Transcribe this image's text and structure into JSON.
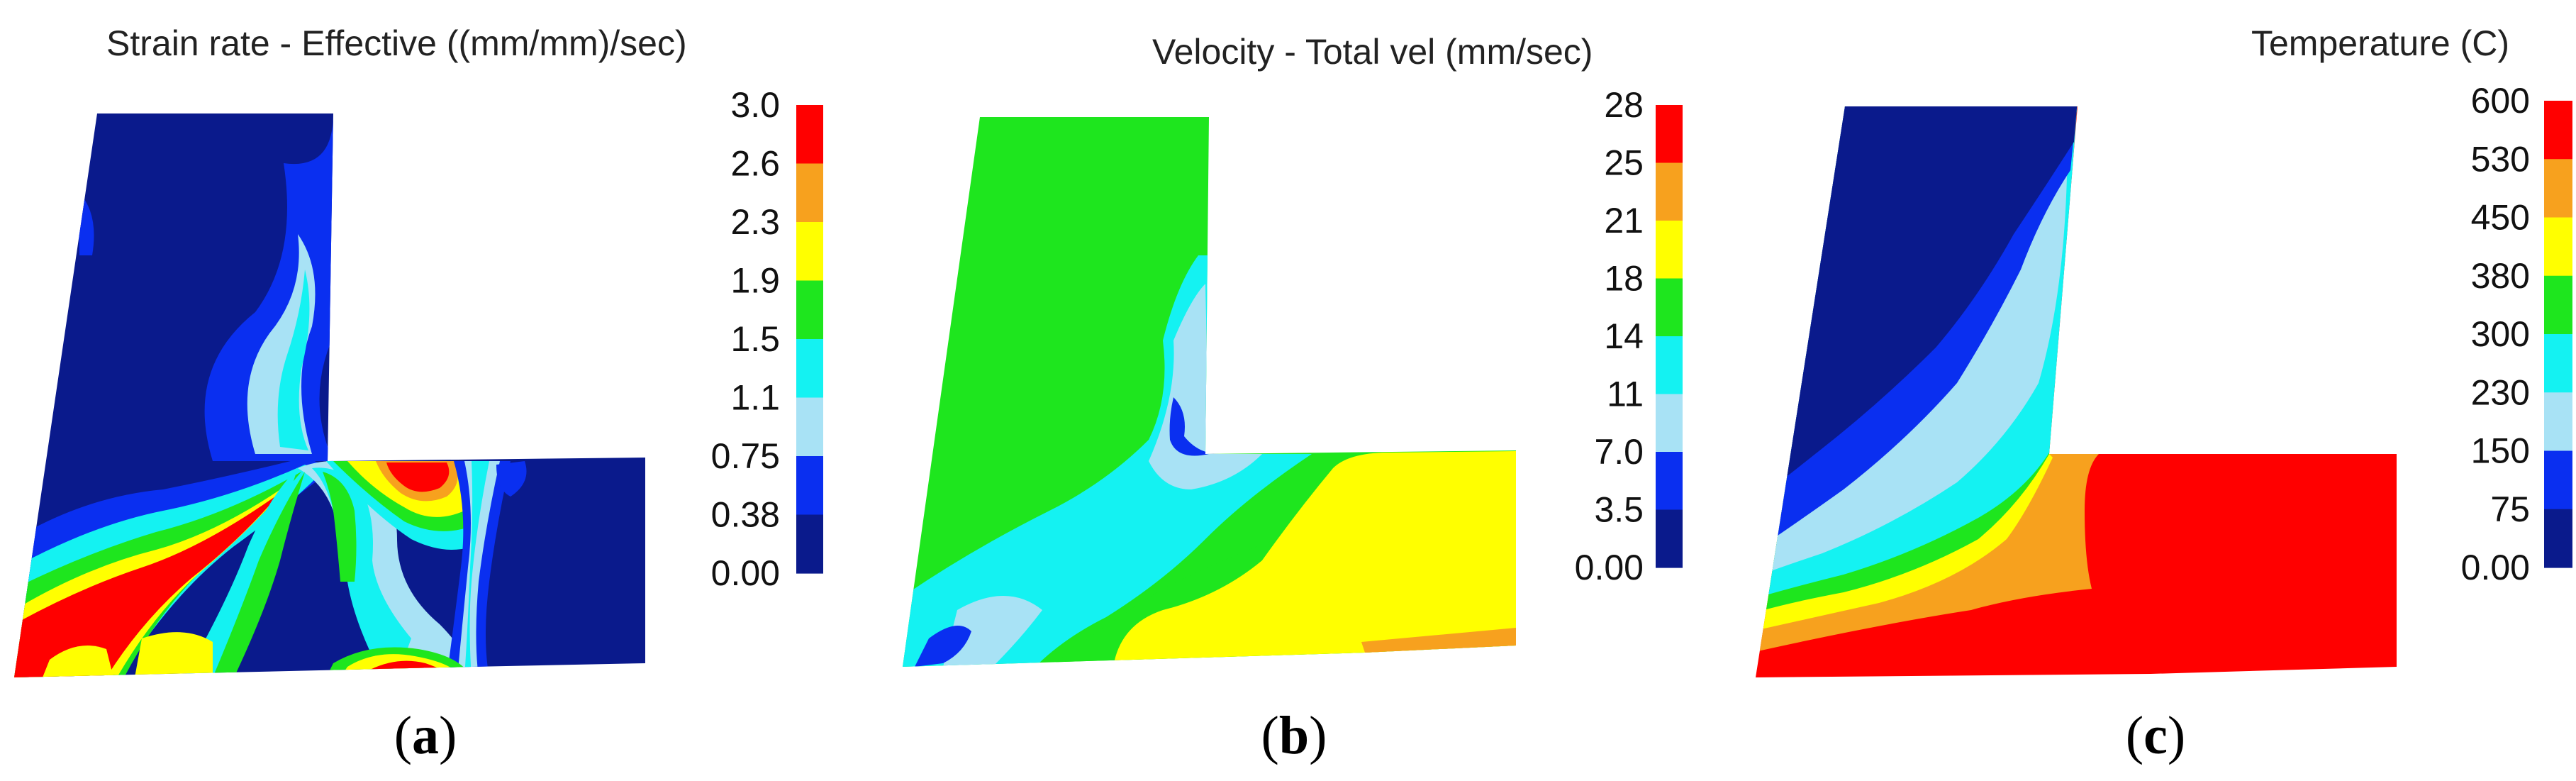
{
  "colors": {
    "navy": "#0a1a8c",
    "blue": "#0a2ff0",
    "lightblue": "#a8e2f5",
    "cyan": "#14f2f2",
    "green": "#1ee61e",
    "yellow": "#ffff00",
    "orange": "#f7a11e",
    "red": "#ff0000"
  },
  "panels": [
    {
      "id": "a",
      "title": "Strain rate - Effective ((mm/mm)/sec)",
      "caption_letter": "a",
      "legend": {
        "tick_labels": [
          "3.0",
          "2.6",
          "2.3",
          "1.9",
          "1.5",
          "1.1",
          "0.75",
          "0.38",
          "0.00"
        ],
        "band_colors": [
          "red",
          "orange",
          "yellow",
          "green",
          "cyan",
          "lightblue",
          "blue",
          "navy"
        ]
      }
    },
    {
      "id": "b",
      "title": "Velocity - Total vel (mm/sec)",
      "caption_letter": "b",
      "legend": {
        "tick_labels": [
          "28",
          "25",
          "21",
          "18",
          "14",
          "11",
          "7.0",
          "3.5",
          "0.00"
        ],
        "band_colors": [
          "red",
          "orange",
          "yellow",
          "green",
          "cyan",
          "lightblue",
          "blue",
          "navy"
        ]
      }
    },
    {
      "id": "c",
      "title": "Temperature (C)",
      "caption_letter": "c",
      "legend": {
        "tick_labels": [
          "600",
          "530",
          "450",
          "380",
          "300",
          "230",
          "150",
          "75",
          "0.00"
        ],
        "band_colors": [
          "red",
          "orange",
          "yellow",
          "green",
          "cyan",
          "lightblue",
          "blue",
          "navy"
        ]
      }
    }
  ]
}
